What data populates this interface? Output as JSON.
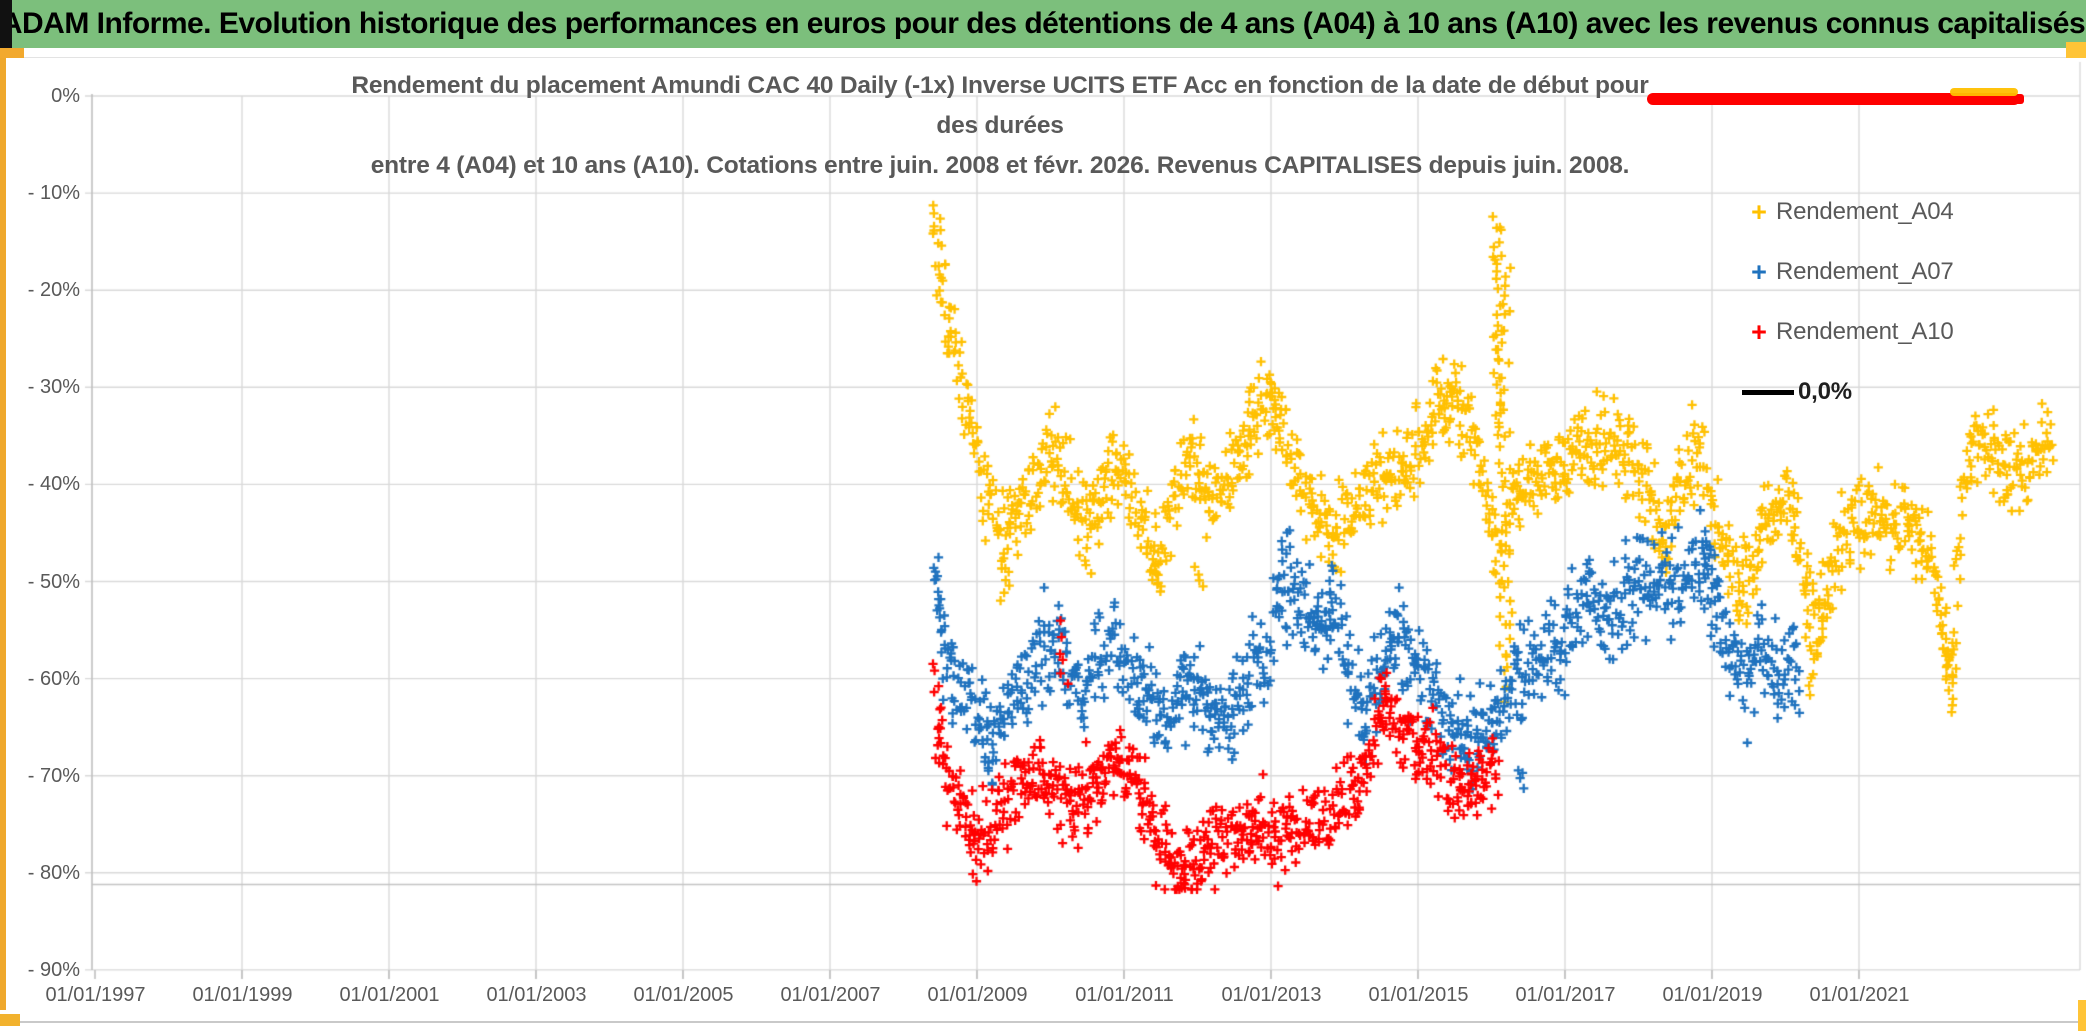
{
  "header": {
    "title": "ADAM Informe. Evolution historique des performances en euros pour des détentions de 4 ans (A04) à 10 ans (A10) avec les revenus connus capitalisés"
  },
  "theme": {
    "header_green": "#7CBF7C",
    "accent_orange": "#EFA82C",
    "accent_gold": "#FFC437",
    "grid_color": "#D9D9D9",
    "axis_color": "#BFBFBF",
    "text_gray": "#595959",
    "series_yellow": "#FFC000",
    "series_blue": "#1F72BE",
    "series_red": "#FF0000",
    "zero_line_black": "#000000"
  },
  "legend": {
    "items": [
      {
        "label": "Rendement_A04",
        "color": "#FFC000",
        "type": "plus"
      },
      {
        "label": "Rendement_A07",
        "color": "#1F72BE",
        "type": "plus"
      },
      {
        "label": "Rendement_A10",
        "color": "#FF0000",
        "type": "plus"
      },
      {
        "label": "0,0%",
        "color": "#000000",
        "type": "line"
      }
    ]
  },
  "chart_data": {
    "type": "scatter",
    "marker": "plus",
    "title_lines": [
      "Rendement du placement Amundi CAC 40 Daily (-1x) Inverse UCITS ETF Acc en fonction de la date de début pour des durées",
      "entre 4 (A04) et 10 ans (A10). Cotations entre juin. 2008 et févr. 2026. Revenus CAPITALISES depuis juin. 2008."
    ],
    "x_ticks": [
      "01/01/1997",
      "01/01/1999",
      "01/01/2001",
      "01/01/2003",
      "01/01/2005",
      "01/01/2007",
      "01/01/2009",
      "01/01/2011",
      "01/01/2013",
      "01/01/2015",
      "01/01/2017",
      "01/01/2019",
      "01/01/2021"
    ],
    "y_ticks": [
      "0%",
      "- 10%",
      "- 20%",
      "- 30%",
      "- 40%",
      "- 50%",
      "- 60%",
      "- 70%",
      "- 80%",
      "- 90%"
    ],
    "x_range_years": [
      1996.95,
      2024.0
    ],
    "y_range_pct": [
      0,
      -90
    ],
    "grid": true,
    "legend_position": "right-inside",
    "extra_hline_pct": -81.2,
    "annotations": {
      "red_bar": {
        "from_year": 2018.1,
        "to_year": 2023.2,
        "at_pct": 0.0,
        "color": "#FF0000"
      },
      "yellow_smudge": {
        "from_year": 2022.2,
        "to_year": 2023.1,
        "at_pct": 0.3,
        "color": "#FFC000"
      }
    },
    "series": [
      {
        "name": "Rendement_A04",
        "color": "#FFC000",
        "spread_pct": 2.3,
        "anchors": [
          [
            2008.45,
            -16
          ],
          [
            2008.55,
            -21
          ],
          [
            2008.7,
            -27
          ],
          [
            2008.85,
            -32
          ],
          [
            2009.0,
            -36.5
          ],
          [
            2009.15,
            -41
          ],
          [
            2009.35,
            -45.5
          ],
          [
            2009.5,
            -43.5
          ],
          [
            2009.7,
            -41.5
          ],
          [
            2009.85,
            -39.5
          ],
          [
            2010.05,
            -36.5
          ],
          [
            2010.2,
            -39
          ],
          [
            2010.4,
            -43
          ],
          [
            2010.55,
            -43.5
          ],
          [
            2010.7,
            -41
          ],
          [
            2010.85,
            -37.5
          ],
          [
            2011.0,
            -39.5
          ],
          [
            2011.15,
            -42
          ],
          [
            2011.35,
            -46
          ],
          [
            2011.5,
            -46.5
          ],
          [
            2011.65,
            -43
          ],
          [
            2011.8,
            -39
          ],
          [
            2011.95,
            -37.5
          ],
          [
            2012.1,
            -40
          ],
          [
            2012.25,
            -42
          ],
          [
            2012.4,
            -40.5
          ],
          [
            2012.55,
            -37
          ],
          [
            2012.7,
            -34.5
          ],
          [
            2012.85,
            -32.5
          ],
          [
            2013.0,
            -31.5
          ],
          [
            2013.15,
            -34
          ],
          [
            2013.3,
            -37.5
          ],
          [
            2013.45,
            -40.5
          ],
          [
            2013.6,
            -43
          ],
          [
            2013.75,
            -44.5
          ],
          [
            2013.9,
            -45.5
          ],
          [
            2014.05,
            -43
          ],
          [
            2014.2,
            -41
          ],
          [
            2014.4,
            -39.5
          ],
          [
            2014.6,
            -38.5
          ],
          [
            2014.8,
            -39.5
          ],
          [
            2015.0,
            -36.5
          ],
          [
            2015.15,
            -33
          ],
          [
            2015.3,
            -31.5
          ],
          [
            2015.45,
            -31.5
          ],
          [
            2015.6,
            -32.5
          ],
          [
            2015.75,
            -35
          ],
          [
            2015.9,
            -40
          ],
          [
            2016.0,
            -44
          ],
          [
            2016.1,
            -47
          ],
          [
            2016.2,
            -45
          ],
          [
            2016.3,
            -42
          ],
          [
            2016.45,
            -41
          ],
          [
            2016.6,
            -39.5
          ],
          [
            2016.75,
            -38
          ],
          [
            2016.9,
            -38.5
          ],
          [
            2017.05,
            -37.5
          ],
          [
            2017.2,
            -36
          ],
          [
            2017.4,
            -36.5
          ],
          [
            2017.6,
            -36
          ],
          [
            2017.8,
            -37
          ],
          [
            2018.0,
            -38.5
          ],
          [
            2018.2,
            -42
          ],
          [
            2018.35,
            -44.5
          ],
          [
            2018.5,
            -41
          ],
          [
            2018.65,
            -38
          ],
          [
            2018.8,
            -36.5
          ],
          [
            2018.95,
            -40
          ],
          [
            2019.1,
            -44.5
          ],
          [
            2019.25,
            -48
          ],
          [
            2019.4,
            -50.5
          ],
          [
            2019.55,
            -47.5
          ],
          [
            2019.7,
            -44.5
          ],
          [
            2019.85,
            -42
          ],
          [
            2020.0,
            -41.5
          ],
          [
            2020.15,
            -44
          ],
          [
            2020.3,
            -51
          ],
          [
            2020.42,
            -55
          ],
          [
            2020.55,
            -50
          ],
          [
            2020.7,
            -46.5
          ],
          [
            2020.85,
            -44.5
          ],
          [
            2021.0,
            -43
          ],
          [
            2021.2,
            -42.5
          ],
          [
            2021.4,
            -43.5
          ],
          [
            2021.6,
            -44.5
          ],
          [
            2021.8,
            -45.5
          ],
          [
            2021.95,
            -47
          ],
          [
            2022.1,
            -52
          ],
          [
            2022.25,
            -59
          ],
          [
            2022.4,
            -42
          ],
          [
            2022.5,
            -36
          ],
          [
            2022.65,
            -35.5
          ],
          [
            2022.8,
            -36.5
          ],
          [
            2022.95,
            -38
          ],
          [
            2023.1,
            -39
          ],
          [
            2023.25,
            -38
          ],
          [
            2023.4,
            -36.5
          ],
          [
            2023.55,
            -35
          ],
          [
            2023.65,
            -34.5
          ]
        ],
        "outlier_columns": [
          [
            2008.46,
            -11,
            -16,
            8
          ],
          [
            2009.38,
            -48,
            -52,
            6
          ],
          [
            2010.5,
            -45,
            -50,
            5
          ],
          [
            2011.45,
            -47,
            -50.5,
            5
          ],
          [
            2012.02,
            -48,
            -51,
            4
          ],
          [
            2013.05,
            -29.5,
            -31.5,
            5
          ],
          [
            2016.07,
            -11.5,
            -34,
            22
          ],
          [
            2016.13,
            -13,
            -40,
            20
          ],
          [
            2016.2,
            -16,
            -45,
            14
          ],
          [
            2016.17,
            -50,
            -58,
            6
          ],
          [
            2016.23,
            -50,
            -63,
            10
          ],
          [
            2018.35,
            -46,
            -49.5,
            4
          ],
          [
            2019.42,
            -52,
            -54.5,
            5
          ],
          [
            2020.33,
            -54,
            -62.5,
            9
          ],
          [
            2020.48,
            -52,
            -58,
            6
          ],
          [
            2022.15,
            -54,
            -60,
            6
          ],
          [
            2022.28,
            -58,
            -64,
            8
          ]
        ]
      },
      {
        "name": "Rendement_A07",
        "color": "#1F72BE",
        "spread_pct": 2.5,
        "anchors": [
          [
            2008.45,
            -53
          ],
          [
            2008.6,
            -58.5
          ],
          [
            2008.8,
            -62
          ],
          [
            2009.0,
            -64
          ],
          [
            2009.2,
            -66.5
          ],
          [
            2009.4,
            -64
          ],
          [
            2009.6,
            -61.5
          ],
          [
            2009.8,
            -58.5
          ],
          [
            2010.0,
            -56
          ],
          [
            2010.2,
            -58.5
          ],
          [
            2010.4,
            -61
          ],
          [
            2010.6,
            -58.5
          ],
          [
            2010.8,
            -55.5
          ],
          [
            2011.0,
            -57.5
          ],
          [
            2011.2,
            -60
          ],
          [
            2011.45,
            -64
          ],
          [
            2011.7,
            -62
          ],
          [
            2011.9,
            -60.5
          ],
          [
            2012.1,
            -62.5
          ],
          [
            2012.35,
            -65
          ],
          [
            2012.6,
            -62
          ],
          [
            2012.8,
            -59
          ],
          [
            2013.0,
            -56.5
          ],
          [
            2013.2,
            -50.5
          ],
          [
            2013.4,
            -52.5
          ],
          [
            2013.6,
            -54
          ],
          [
            2013.85,
            -54
          ],
          [
            2014.0,
            -57
          ],
          [
            2014.25,
            -63.5
          ],
          [
            2014.45,
            -60
          ],
          [
            2014.6,
            -57
          ],
          [
            2014.75,
            -55
          ],
          [
            2014.9,
            -57.5
          ],
          [
            2015.1,
            -60
          ],
          [
            2015.3,
            -63
          ],
          [
            2015.5,
            -65.5
          ],
          [
            2015.75,
            -66
          ],
          [
            2015.95,
            -64.5
          ],
          [
            2016.2,
            -62.5
          ],
          [
            2016.4,
            -60
          ],
          [
            2016.6,
            -58.5
          ],
          [
            2016.8,
            -57
          ],
          [
            2017.0,
            -56.5
          ],
          [
            2017.15,
            -54
          ],
          [
            2017.3,
            -50.5
          ],
          [
            2017.45,
            -52.5
          ],
          [
            2017.6,
            -54
          ],
          [
            2017.75,
            -52
          ],
          [
            2017.9,
            -50.5
          ],
          [
            2018.1,
            -50
          ],
          [
            2018.3,
            -49.5
          ],
          [
            2018.5,
            -50.5
          ],
          [
            2018.7,
            -49
          ],
          [
            2018.85,
            -48.5
          ],
          [
            2019.0,
            -51
          ],
          [
            2019.15,
            -55
          ],
          [
            2019.3,
            -57.5
          ],
          [
            2019.45,
            -60
          ],
          [
            2019.55,
            -58
          ],
          [
            2019.65,
            -56
          ],
          [
            2019.75,
            -57
          ],
          [
            2019.85,
            -59
          ],
          [
            2019.95,
            -60.5
          ],
          [
            2020.1,
            -59
          ],
          [
            2020.2,
            -60.5
          ]
        ],
        "outlier_columns": [
          [
            2008.46,
            -47,
            -52,
            6
          ],
          [
            2009.2,
            -68,
            -71.5,
            5
          ],
          [
            2013.2,
            -44.5,
            -48,
            5
          ],
          [
            2013.85,
            -48,
            -52,
            5
          ],
          [
            2014.75,
            -52.5,
            -54,
            3
          ],
          [
            2016.38,
            -69,
            -71.5,
            4
          ],
          [
            2017.3,
            -48,
            -50,
            3
          ],
          [
            2018.9,
            -45.5,
            -48,
            5
          ],
          [
            2019.0,
            -46,
            -49,
            4
          ]
        ]
      },
      {
        "name": "Rendement_A10",
        "color": "#FF0000",
        "spread_pct": 2.1,
        "anchors": [
          [
            2008.45,
            -67
          ],
          [
            2008.6,
            -70
          ],
          [
            2008.75,
            -72.5
          ],
          [
            2008.9,
            -75.5
          ],
          [
            2009.05,
            -77
          ],
          [
            2009.2,
            -75
          ],
          [
            2009.4,
            -72.5
          ],
          [
            2009.6,
            -71
          ],
          [
            2009.8,
            -69.5
          ],
          [
            2010.0,
            -71
          ],
          [
            2010.15,
            -72.5
          ],
          [
            2010.3,
            -73.5
          ],
          [
            2010.5,
            -71.5
          ],
          [
            2010.7,
            -69.5
          ],
          [
            2010.9,
            -67.5
          ],
          [
            2011.1,
            -70
          ],
          [
            2011.3,
            -73
          ],
          [
            2011.5,
            -76.5
          ],
          [
            2011.7,
            -79
          ],
          [
            2011.9,
            -79.5
          ],
          [
            2012.1,
            -78
          ],
          [
            2012.3,
            -76.5
          ],
          [
            2012.5,
            -77
          ],
          [
            2012.7,
            -76
          ],
          [
            2012.9,
            -74.5
          ],
          [
            2013.1,
            -75.5
          ],
          [
            2013.3,
            -74.5
          ],
          [
            2013.5,
            -75.5
          ],
          [
            2013.7,
            -74.5
          ],
          [
            2013.9,
            -73
          ],
          [
            2014.1,
            -71.5
          ],
          [
            2014.3,
            -69.5
          ],
          [
            2014.45,
            -65
          ],
          [
            2014.55,
            -62.5
          ],
          [
            2014.7,
            -65
          ],
          [
            2014.85,
            -64.5
          ],
          [
            2015.0,
            -67
          ],
          [
            2015.15,
            -66
          ],
          [
            2015.3,
            -69
          ],
          [
            2015.45,
            -71
          ],
          [
            2015.6,
            -71.5
          ],
          [
            2015.75,
            -70
          ],
          [
            2015.9,
            -70.5
          ],
          [
            2016.05,
            -69.5
          ]
        ],
        "outlier_columns": [
          [
            2008.46,
            -58,
            -64,
            6
          ],
          [
            2010.18,
            -54,
            -61,
            6
          ],
          [
            2011.78,
            -80.5,
            -81.7,
            6
          ],
          [
            2014.55,
            -60,
            -62.5,
            4
          ],
          [
            2016.07,
            -66,
            -72,
            6
          ]
        ]
      }
    ]
  }
}
